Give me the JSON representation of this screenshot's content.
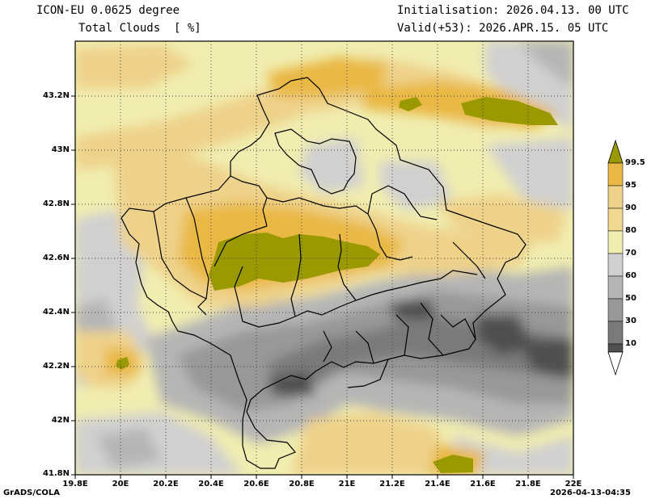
{
  "header": {
    "model": "ICON-EU 0.0625 degree",
    "variable": "Total Clouds  [ %]",
    "init": "Initialisation: 2026.04.13. 00 UTC",
    "valid": "Valid(+53): 2026.APR.15. 05 UTC"
  },
  "axes": {
    "lat_labels": [
      "43.2N",
      "43N",
      "42.8N",
      "42.6N",
      "42.4N",
      "42.2N",
      "42N",
      "41.8N"
    ],
    "lon_labels": [
      "19.8E",
      "20E",
      "20.2E",
      "20.4E",
      "20.6E",
      "20.8E",
      "21E",
      "21.2E",
      "21.4E",
      "21.6E",
      "21.8E",
      "22E"
    ]
  },
  "colorbar": {
    "levels": [
      "99.5",
      "95",
      "90",
      "80",
      "70",
      "60",
      "50",
      "30",
      "10"
    ],
    "colors": {
      "below10": "#ffffff",
      "10-30": "#505050",
      "30-50": "#7a7a7a",
      "50-60": "#989898",
      "60-70": "#b5b5b5",
      "70-80": "#d0d0d0",
      "80-90": "#f0edb0",
      "90-95": "#eed28a",
      "95-99.5": "#e9b845",
      "above99.5": "#9a9a00"
    }
  },
  "footer": {
    "left": "GrADS/COLA",
    "right": "2026-04-13-04:35"
  }
}
